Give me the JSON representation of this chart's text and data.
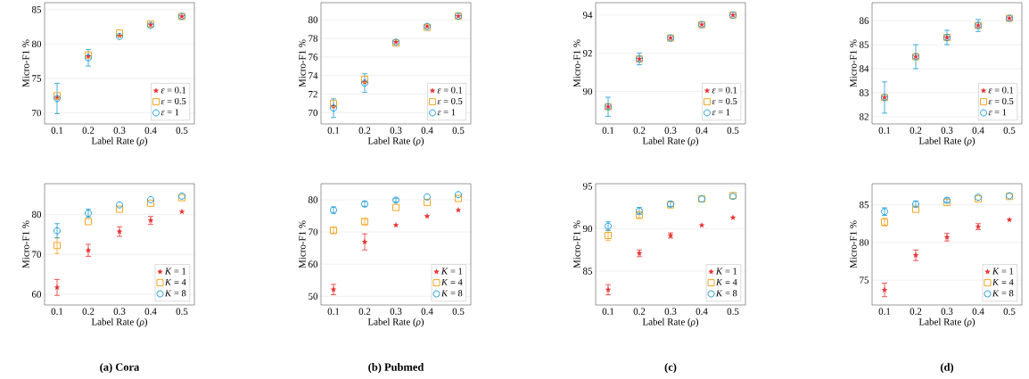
{
  "chart_data": [
    {
      "type": "scatter",
      "xlabel": "Label Rate (*ρ*)",
      "ylabel": "Micro-F1 %",
      "x": [
        0.1,
        0.2,
        0.3,
        0.4,
        0.5
      ],
      "xlim": [
        0.06,
        0.54
      ],
      "xticks": [
        0.1,
        0.2,
        0.3,
        0.4,
        0.5
      ],
      "ylim": [
        68.4,
        86
      ],
      "yticks": [
        70,
        75,
        80,
        85
      ],
      "grid": "y",
      "legend": "bottom right",
      "series": [
        {
          "name": "*ε* = 0.1",
          "color": "#e8312f",
          "marker": "star",
          "values": [
            72.2,
            78.2,
            81.2,
            82.8,
            84.0
          ]
        },
        {
          "name": "*ε* = 0.5",
          "color": "#f5a623",
          "marker": "square",
          "values": [
            72.5,
            78.4,
            81.6,
            82.9,
            84.0
          ]
        },
        {
          "name": "*ε* = 1",
          "color": "#1a9ad6",
          "marker": "circle",
          "values": [
            72.1,
            78.0,
            81.1,
            82.7,
            84.0
          ],
          "errors": [
            2.2,
            1.2,
            null,
            null,
            null
          ]
        }
      ]
    },
    {
      "type": "scatter",
      "xlabel": "Label Rate (*ρ*)",
      "ylabel": "Micro-F1 %",
      "x": [
        0.1,
        0.2,
        0.3,
        0.4,
        0.5
      ],
      "xlim": [
        0.06,
        0.54
      ],
      "xticks": [
        0.1,
        0.2,
        0.3,
        0.4,
        0.5
      ],
      "ylim": [
        68.8,
        81.85
      ],
      "yticks": [
        70,
        72,
        74,
        76,
        78,
        80
      ],
      "grid": "y",
      "legend": "bottom right",
      "series": [
        {
          "name": "*ε* = 0.1",
          "color": "#e8312f",
          "marker": "star",
          "values": [
            70.7,
            73.3,
            77.6,
            79.3,
            80.4
          ]
        },
        {
          "name": "*ε* = 0.5",
          "color": "#f5a623",
          "marker": "square",
          "values": [
            71.0,
            73.6,
            77.5,
            79.2,
            80.4
          ]
        },
        {
          "name": "*ε* = 1",
          "color": "#1a9ad6",
          "marker": "circle",
          "values": [
            70.5,
            73.2,
            77.6,
            79.3,
            80.4
          ],
          "errors": [
            1,
            1,
            null,
            null,
            null
          ]
        }
      ]
    },
    {
      "type": "scatter",
      "xlabel": "Label Rate (*ρ*)",
      "ylabel": "Micro-F1 %",
      "x": [
        0.1,
        0.2,
        0.3,
        0.4,
        0.5
      ],
      "xlim": [
        0.06,
        0.54
      ],
      "xticks": [
        0.1,
        0.2,
        0.3,
        0.4,
        0.5
      ],
      "ylim": [
        88.3,
        94.65
      ],
      "yticks": [
        90,
        92,
        94
      ],
      "grid": "y",
      "legend": "bottom right",
      "series": [
        {
          "name": "*ε* = 0.1",
          "color": "#e8312f",
          "marker": "star",
          "values": [
            89.2,
            91.7,
            92.8,
            93.5,
            94.0
          ]
        },
        {
          "name": "*ε* = 0.5",
          "color": "#f5a623",
          "marker": "square",
          "values": [
            89.2,
            91.7,
            92.8,
            93.5,
            94.0
          ]
        },
        {
          "name": "*ε* = 1",
          "color": "#1a9ad6",
          "marker": "circle",
          "values": [
            89.2,
            91.7,
            92.8,
            93.5,
            94.0
          ],
          "errors": [
            0.5,
            0.3,
            null,
            null,
            null
          ]
        }
      ]
    },
    {
      "type": "scatter",
      "xlabel": "Label Rate (*ρ*)",
      "ylabel": "Micro-F1 %",
      "x": [
        0.1,
        0.2,
        0.3,
        0.4,
        0.5
      ],
      "xlim": [
        0.06,
        0.54
      ],
      "xticks": [
        0.1,
        0.2,
        0.3,
        0.4,
        0.5
      ],
      "ylim": [
        81.7,
        86.75
      ],
      "yticks": [
        82,
        83,
        84,
        85,
        86
      ],
      "grid": "y",
      "legend": "bottom right",
      "series": [
        {
          "name": "*ε* = 0.1",
          "color": "#e8312f",
          "marker": "star",
          "values": [
            82.8,
            84.5,
            85.3,
            85.8,
            86.1
          ]
        },
        {
          "name": "*ε* = 0.5",
          "color": "#f5a623",
          "marker": "square",
          "values": [
            82.8,
            84.5,
            85.3,
            85.8,
            86.1
          ]
        },
        {
          "name": "*ε* = 1",
          "color": "#1a9ad6",
          "marker": "circle",
          "values": [
            82.8,
            84.5,
            85.3,
            85.8,
            86.1
          ],
          "errors": [
            0.65,
            0.5,
            0.3,
            0.25,
            null
          ]
        }
      ]
    },
    {
      "type": "scatter",
      "xlabel": "Label Rate (*ρ*)",
      "ylabel": "Micro-F1 %",
      "x": [
        0.1,
        0.2,
        0.3,
        0.4,
        0.5
      ],
      "xlim": [
        0.06,
        0.54
      ],
      "xticks": [
        0.1,
        0.2,
        0.3,
        0.4,
        0.5
      ],
      "ylim": [
        57.3,
        87.7
      ],
      "yticks": [
        60,
        70,
        80
      ],
      "grid": "y",
      "legend": "bottom right",
      "annotations": [
        "**(a) Cora**"
      ],
      "series": [
        {
          "name": "*K* = 1",
          "color": "#e8312f",
          "marker": "star",
          "values": [
            61.7,
            71.0,
            75.7,
            78.5,
            80.7
          ],
          "errors": [
            2,
            1.5,
            1.2,
            1,
            null
          ]
        },
        {
          "name": "*K* = 4",
          "color": "#f5a623",
          "marker": "square",
          "values": [
            72.2,
            78.2,
            81.3,
            82.8,
            84.2
          ],
          "errors": [
            2,
            null,
            null,
            null,
            null
          ]
        },
        {
          "name": "*K* = 8",
          "color": "#1a9ad6",
          "marker": "circle",
          "values": [
            75.9,
            80.3,
            82.4,
            83.7,
            84.6
          ],
          "errors": [
            1.8,
            1,
            null,
            null,
            null
          ]
        }
      ]
    },
    {
      "type": "scatter",
      "xlabel": "Label Rate (*ρ*)",
      "ylabel": "Micro-F1 %",
      "x": [
        0.1,
        0.2,
        0.3,
        0.4,
        0.5
      ],
      "xlim": [
        0.06,
        0.54
      ],
      "xticks": [
        0.1,
        0.2,
        0.3,
        0.4,
        0.5
      ],
      "ylim": [
        47.3,
        85
      ],
      "yticks": [
        50,
        60,
        70,
        80
      ],
      "grid": "y",
      "legend": "bottom right",
      "annotations": [
        "**(b) Pubmed**"
      ],
      "series": [
        {
          "name": "*K* = 1",
          "color": "#e8312f",
          "marker": "star",
          "values": [
            52.1,
            66.9,
            72.1,
            74.9,
            76.8
          ],
          "errors": [
            1.6,
            2.5,
            null,
            null,
            null
          ]
        },
        {
          "name": "*K* = 4",
          "color": "#f5a623",
          "marker": "square",
          "values": [
            70.5,
            73.2,
            77.6,
            79.2,
            80.4
          ],
          "errors": [
            1,
            1,
            null,
            null,
            null
          ]
        },
        {
          "name": "*K* = 8",
          "color": "#1a9ad6",
          "marker": "circle",
          "values": [
            76.8,
            78.7,
            79.9,
            80.9,
            81.6
          ],
          "errors": [
            1,
            0.8,
            0.6,
            null,
            null
          ]
        }
      ]
    },
    {
      "type": "scatter",
      "xlabel": "Label Rate (*ρ*)",
      "ylabel": "Micro-F1 %",
      "x": [
        0.1,
        0.2,
        0.3,
        0.4,
        0.5
      ],
      "xlim": [
        0.06,
        0.54
      ],
      "xticks": [
        0.1,
        0.2,
        0.3,
        0.4,
        0.5
      ],
      "ylim": [
        81.0,
        95.3
      ],
      "yticks": [
        85,
        90,
        95
      ],
      "grid": "y",
      "legend": "bottom right",
      "annotations": [
        "**(c)**"
      ],
      "series": [
        {
          "name": "*K* = 1",
          "color": "#e8312f",
          "marker": "star",
          "values": [
            82.8,
            87.1,
            89.2,
            90.4,
            91.3
          ],
          "errors": [
            0.6,
            0.4,
            0.3,
            null,
            null
          ]
        },
        {
          "name": "*K* = 4",
          "color": "#f5a623",
          "marker": "square",
          "values": [
            89.2,
            91.6,
            92.8,
            93.5,
            93.9
          ],
          "errors": [
            0.6,
            0.4,
            null,
            null,
            null
          ]
        },
        {
          "name": "*K* = 8",
          "color": "#1a9ad6",
          "marker": "circle",
          "values": [
            90.3,
            92.1,
            92.9,
            93.5,
            93.8
          ],
          "errors": [
            0.5,
            0.4,
            0.3,
            null,
            null
          ]
        }
      ]
    },
    {
      "type": "scatter",
      "xlabel": "Label Rate (*ρ*)",
      "ylabel": "Micro-F1 %",
      "x": [
        0.1,
        0.2,
        0.3,
        0.4,
        0.5
      ],
      "xlim": [
        0.06,
        0.54
      ],
      "xticks": [
        0.1,
        0.2,
        0.3,
        0.4,
        0.5
      ],
      "ylim": [
        71.7,
        87.8
      ],
      "yticks": [
        75,
        80,
        85
      ],
      "grid": "y",
      "legend": "bottom right",
      "annotations": [
        "**(d)**"
      ],
      "series": [
        {
          "name": "*K* = 1",
          "color": "#e8312f",
          "marker": "star",
          "values": [
            73.7,
            78.3,
            80.7,
            82.1,
            83.0
          ],
          "errors": [
            0.9,
            0.7,
            0.5,
            0.4,
            null
          ]
        },
        {
          "name": "*K* = 4",
          "color": "#f5a623",
          "marker": "square",
          "values": [
            82.7,
            84.4,
            85.3,
            85.8,
            86.1
          ],
          "errors": [
            0.5,
            null,
            null,
            null,
            null
          ]
        },
        {
          "name": "*K* = 8",
          "color": "#1a9ad6",
          "marker": "circle",
          "values": [
            84.1,
            85.1,
            85.6,
            86.0,
            86.2
          ],
          "errors": [
            0.5,
            0.4,
            0.3,
            null,
            null
          ]
        }
      ]
    }
  ]
}
